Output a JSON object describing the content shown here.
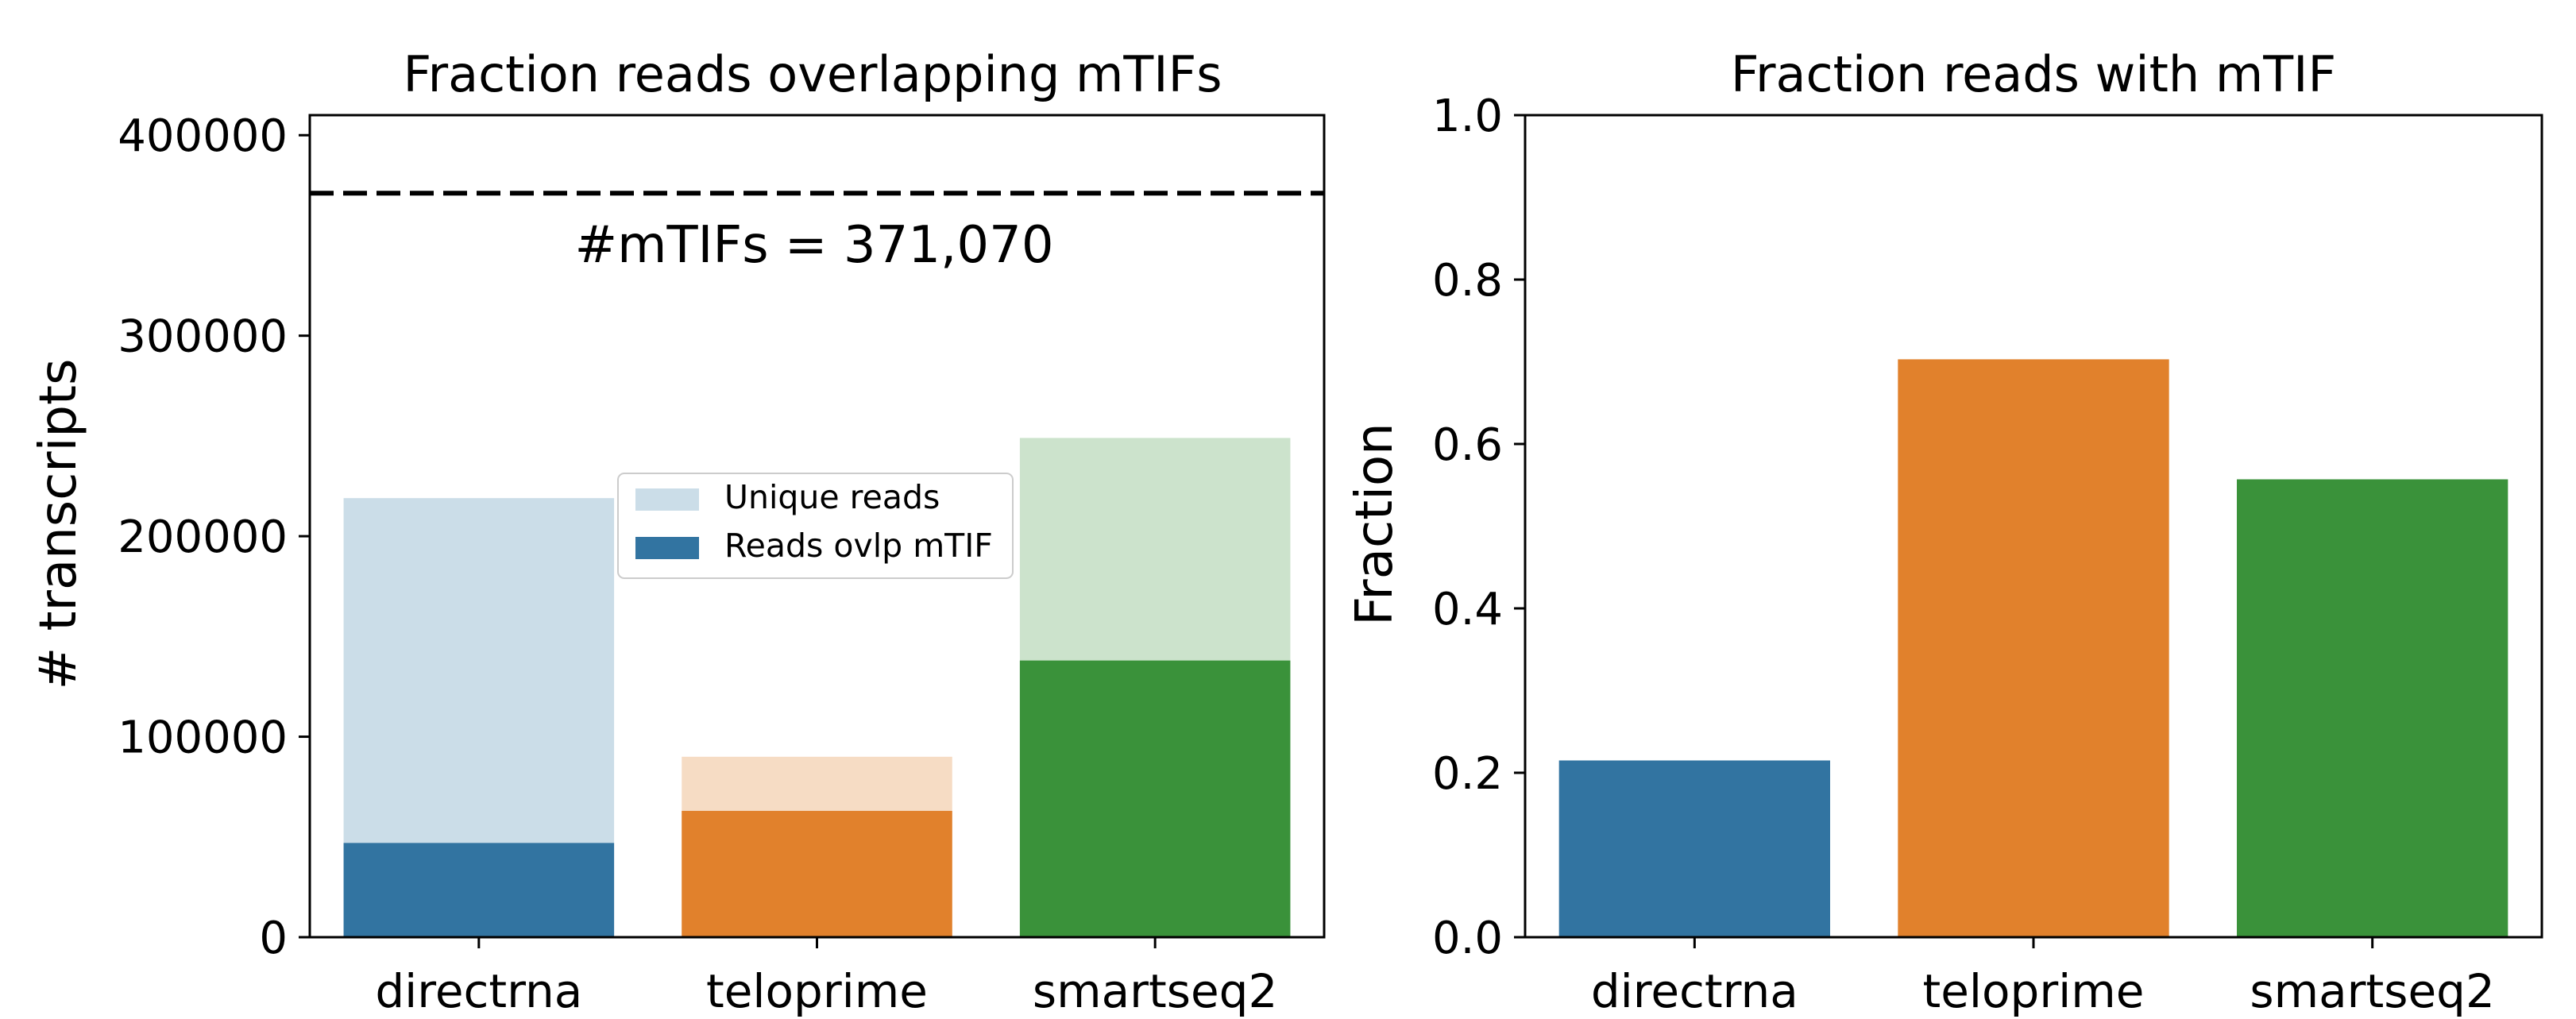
{
  "chart_data": [
    {
      "type": "bar",
      "title": "Fraction reads overlapping mTIFs",
      "xlabel": "",
      "ylabel": "# transcripts",
      "categories": [
        "directrna",
        "teloprime",
        "smartseq2"
      ],
      "ylim": [
        0,
        410000
      ],
      "yticks": [
        "0",
        "100000",
        "200000",
        "300000",
        "400000"
      ],
      "series": [
        {
          "name": "Unique reads",
          "values": [
            219000,
            90000,
            249000
          ]
        },
        {
          "name": "Reads ovlp mTIF",
          "values": [
            47000,
            63000,
            138000
          ]
        }
      ],
      "reference_line": {
        "value": 371070,
        "style": "dashed",
        "label": "#mTIFs = 371,070"
      },
      "legend_placement": "center",
      "grid": false
    },
    {
      "type": "bar",
      "title": "Fraction reads with mTIF",
      "xlabel": "",
      "ylabel": "Fraction",
      "categories": [
        "directrna",
        "teloprime",
        "smartseq2"
      ],
      "ylim": [
        0,
        1.0
      ],
      "yticks": [
        "0.0",
        "0.2",
        "0.4",
        "0.6",
        "0.8",
        "1.0"
      ],
      "values": [
        0.215,
        0.703,
        0.557
      ],
      "legend_placement": "none",
      "grid": false
    }
  ],
  "colors": {
    "palette": [
      "#3274a1",
      "#e1812c",
      "#3a923a"
    ],
    "light_palette": [
      "#cbdde8",
      "#f6dcc4",
      "#cce3cc"
    ]
  }
}
